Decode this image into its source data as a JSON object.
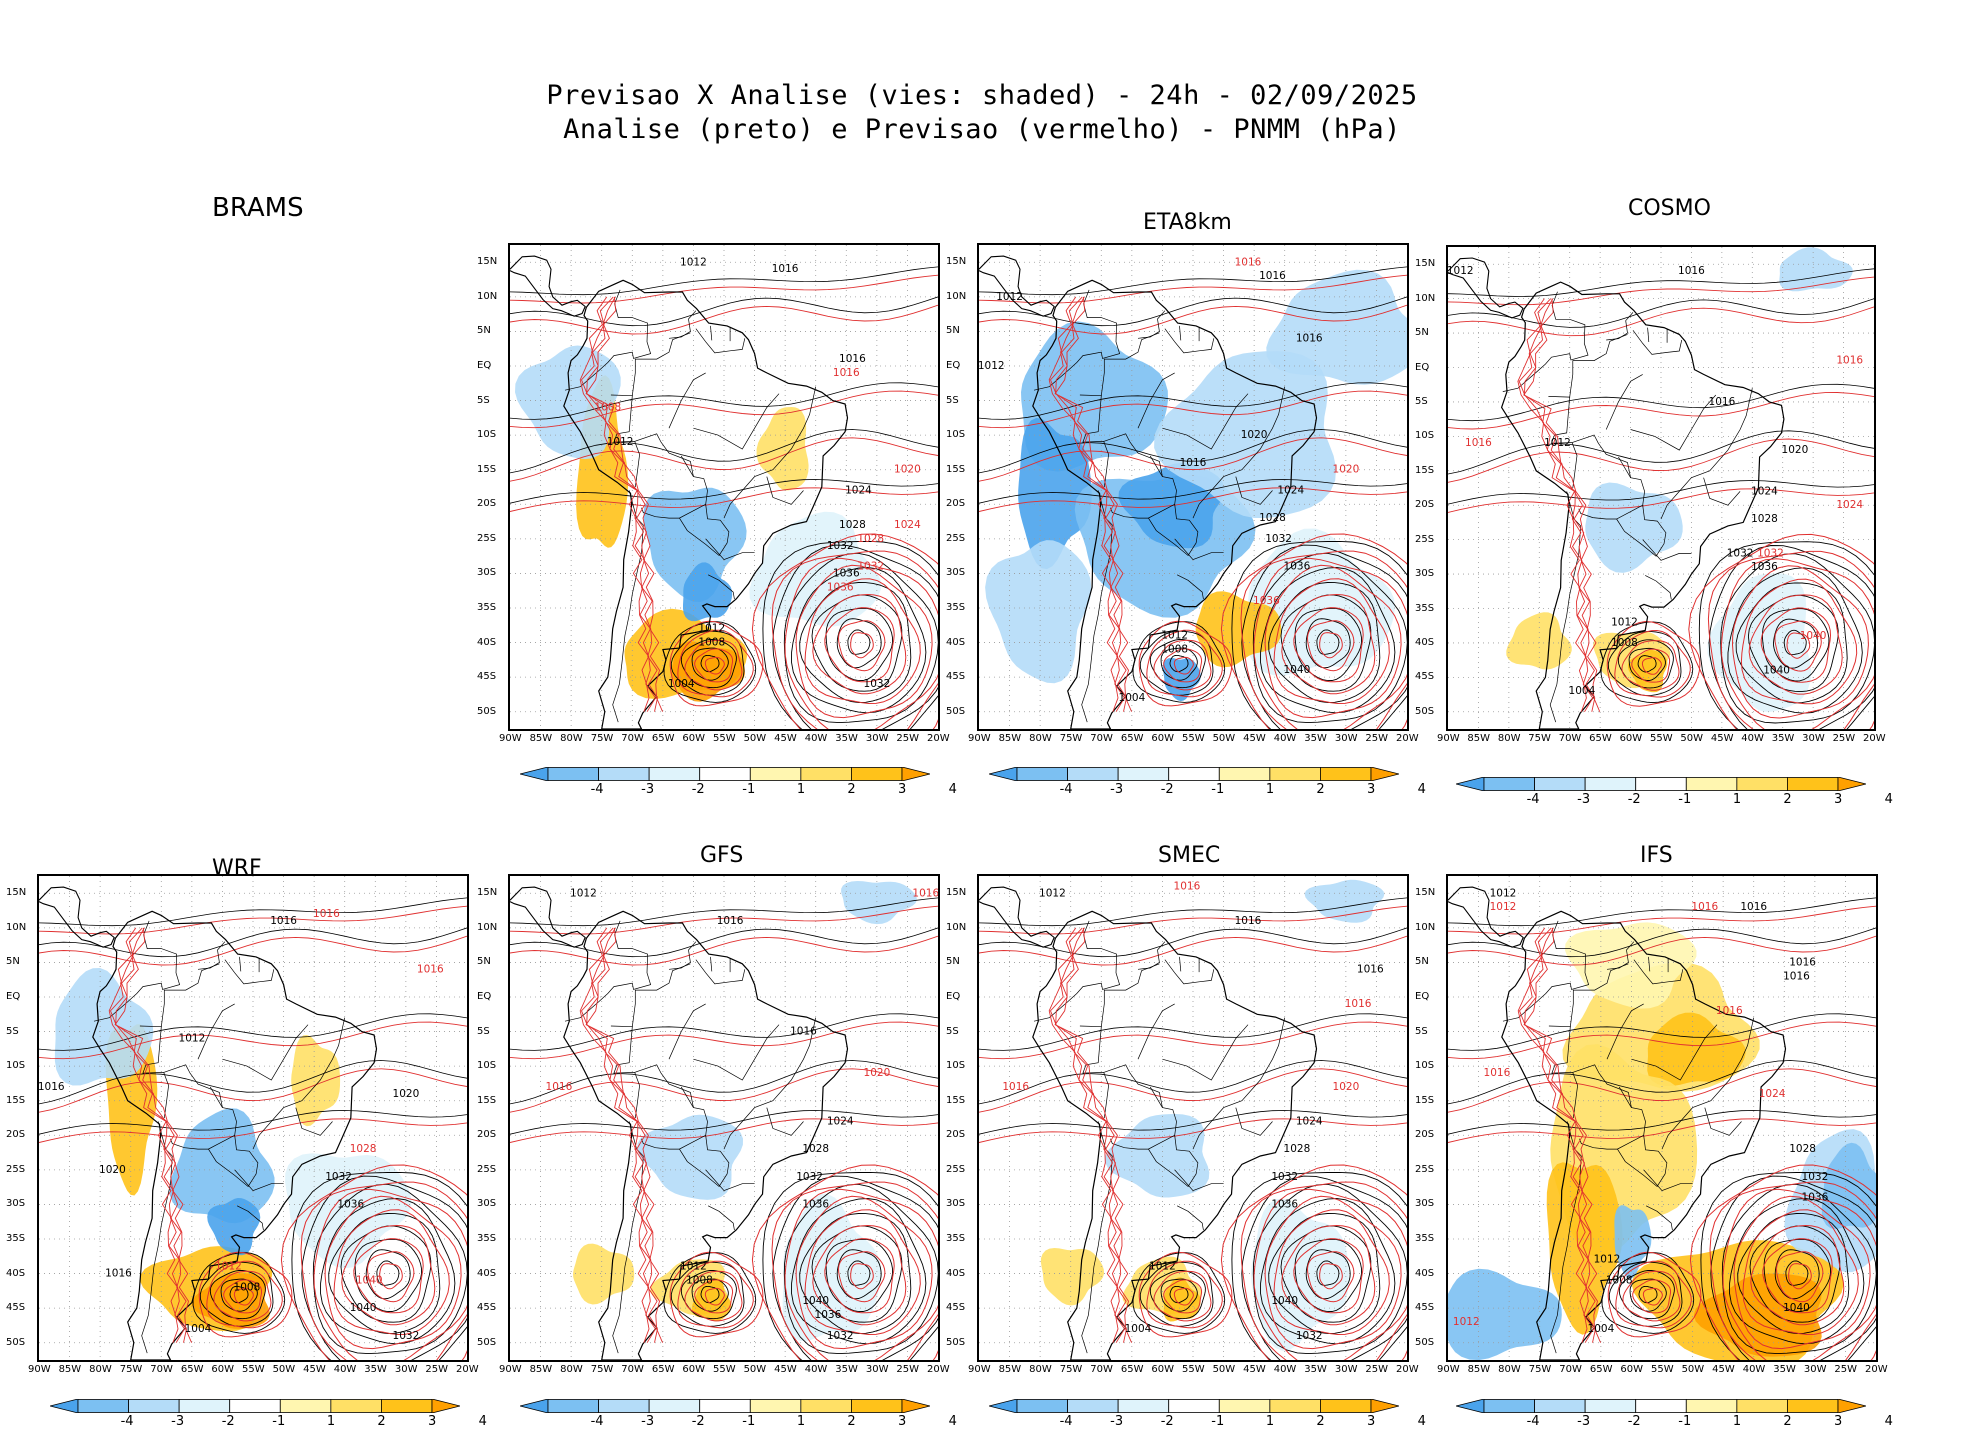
{
  "header": {
    "line1": "Previsao X Analise (vies: shaded) - 24h - 02/09/2025",
    "line2": "Analise (preto) e Previsao (vermelho) - PNMM (hPa)"
  },
  "lat_labels": [
    "15N",
    "10N",
    "5N",
    "EQ",
    "5S",
    "10S",
    "15S",
    "20S",
    "25S",
    "30S",
    "35S",
    "40S",
    "45S",
    "50S"
  ],
  "lon_labels": [
    "90W",
    "85W",
    "80W",
    "75W",
    "70W",
    "65W",
    "60W",
    "55W",
    "50W",
    "45W",
    "40W",
    "35W",
    "30W",
    "25W",
    "20W"
  ],
  "colorbar": {
    "ticks": [
      "-4",
      "-3",
      "-2",
      "-1",
      "1",
      "2",
      "3",
      "4"
    ],
    "colors": [
      "#4aa3ec",
      "#7cc0f2",
      "#b4dcf8",
      "#dff3fb",
      "#ffffff",
      "#fff6b0",
      "#ffe066",
      "#ffc21a",
      "#ffa000"
    ]
  },
  "line_colors": {
    "analysis": "#000000",
    "forecast": "#e03030"
  },
  "panels": [
    {
      "model": "BRAMS",
      "bias": "mixed",
      "isobars": [
        {
          "value": "1012",
          "v": 1012,
          "lon": -60,
          "lat": 15,
          "fc": false
        },
        {
          "value": "1016",
          "v": 1016,
          "lon": -45,
          "lat": 14,
          "fc": false
        },
        {
          "value": "1016",
          "v": 1016,
          "lon": -34,
          "lat": 1,
          "fc": false
        },
        {
          "value": "1016",
          "v": 1016,
          "lon": -35,
          "lat": -1,
          "fc": true
        },
        {
          "value": "1012",
          "v": 1012,
          "lon": -72,
          "lat": -11,
          "fc": false
        },
        {
          "value": "1008",
          "v": 1008,
          "lon": -74,
          "lat": -6,
          "fc": true
        },
        {
          "value": "1020",
          "v": 1020,
          "lon": -25,
          "lat": -15,
          "fc": true
        },
        {
          "value": "1024",
          "v": 1024,
          "lon": -33,
          "lat": -18,
          "fc": false
        },
        {
          "value": "1024",
          "v": 1024,
          "lon": -25,
          "lat": -23,
          "fc": true
        },
        {
          "value": "1028",
          "v": 1028,
          "lon": -34,
          "lat": -23,
          "fc": false
        },
        {
          "value": "1028",
          "v": 1028,
          "lon": -31,
          "lat": -25,
          "fc": true
        },
        {
          "value": "1032",
          "v": 1032,
          "lon": -36,
          "lat": -26,
          "fc": false
        },
        {
          "value": "1032",
          "v": 1032,
          "lon": -31,
          "lat": -29,
          "fc": true
        },
        {
          "value": "1036",
          "v": 1036,
          "lon": -35,
          "lat": -30,
          "fc": false
        },
        {
          "value": "1036",
          "v": 1036,
          "lon": -36,
          "lat": -32,
          "fc": true
        },
        {
          "value": "1012",
          "v": 1012,
          "lon": -57,
          "lat": -38,
          "fc": false
        },
        {
          "value": "1008",
          "v": 1008,
          "lon": -57,
          "lat": -40,
          "fc": false
        },
        {
          "value": "1004",
          "v": 1004,
          "lon": -62,
          "lat": -46,
          "fc": false
        },
        {
          "value": "1032",
          "v": 1032,
          "lon": -30,
          "lat": -46,
          "fc": false
        }
      ]
    },
    {
      "model": "ETA8km",
      "bias": "negative",
      "isobars": [
        {
          "value": "1012",
          "v": 1012,
          "lon": -85,
          "lat": 10,
          "fc": false
        },
        {
          "value": "1016",
          "v": 1016,
          "lon": -42,
          "lat": 13,
          "fc": false
        },
        {
          "value": "1016",
          "v": 1016,
          "lon": -46,
          "lat": 15,
          "fc": true
        },
        {
          "value": "1016",
          "v": 1016,
          "lon": -36,
          "lat": 4,
          "fc": false
        },
        {
          "value": "1012",
          "v": 1012,
          "lon": -88,
          "lat": 0,
          "fc": false
        },
        {
          "value": "1016",
          "v": 1016,
          "lon": -55,
          "lat": -14,
          "fc": false
        },
        {
          "value": "1020",
          "v": 1020,
          "lon": -45,
          "lat": -10,
          "fc": false
        },
        {
          "value": "1020",
          "v": 1020,
          "lon": -30,
          "lat": -15,
          "fc": true
        },
        {
          "value": "1024",
          "v": 1024,
          "lon": -39,
          "lat": -18,
          "fc": false
        },
        {
          "value": "1028",
          "v": 1028,
          "lon": -42,
          "lat": -22,
          "fc": false
        },
        {
          "value": "1032",
          "v": 1032,
          "lon": -41,
          "lat": -25,
          "fc": false
        },
        {
          "value": "1036",
          "v": 1036,
          "lon": -38,
          "lat": -29,
          "fc": false
        },
        {
          "value": "1036",
          "v": 1036,
          "lon": -43,
          "lat": -34,
          "fc": true
        },
        {
          "value": "1040",
          "v": 1040,
          "lon": -38,
          "lat": -44,
          "fc": false
        },
        {
          "value": "1012",
          "v": 1012,
          "lon": -58,
          "lat": -39,
          "fc": false
        },
        {
          "value": "1008",
          "v": 1008,
          "lon": -58,
          "lat": -41,
          "fc": false
        },
        {
          "value": "1004",
          "v": 1004,
          "lon": -65,
          "lat": -48,
          "fc": false
        }
      ]
    },
    {
      "model": "COSMO",
      "bias": "weak",
      "isobars": [
        {
          "value": "1012",
          "v": 1012,
          "lon": -88,
          "lat": 14,
          "fc": false
        },
        {
          "value": "1016",
          "v": 1016,
          "lon": -50,
          "lat": 14,
          "fc": false
        },
        {
          "value": "1016",
          "v": 1016,
          "lon": -24,
          "lat": 1,
          "fc": true
        },
        {
          "value": "1016",
          "v": 1016,
          "lon": -45,
          "lat": -5,
          "fc": false
        },
        {
          "value": "1012",
          "v": 1012,
          "lon": -72,
          "lat": -11,
          "fc": false
        },
        {
          "value": "1016",
          "v": 1016,
          "lon": -85,
          "lat": -11,
          "fc": true
        },
        {
          "value": "1020",
          "v": 1020,
          "lon": -33,
          "lat": -12,
          "fc": false
        },
        {
          "value": "1024",
          "v": 1024,
          "lon": -38,
          "lat": -18,
          "fc": false
        },
        {
          "value": "1024",
          "v": 1024,
          "lon": -24,
          "lat": -20,
          "fc": true
        },
        {
          "value": "1028",
          "v": 1028,
          "lon": -38,
          "lat": -22,
          "fc": false
        },
        {
          "value": "1032",
          "v": 1032,
          "lon": -42,
          "lat": -27,
          "fc": false
        },
        {
          "value": "1032",
          "v": 1032,
          "lon": -37,
          "lat": -27,
          "fc": true
        },
        {
          "value": "1036",
          "v": 1036,
          "lon": -38,
          "lat": -29,
          "fc": false
        },
        {
          "value": "1040",
          "v": 1040,
          "lon": -30,
          "lat": -39,
          "fc": true
        },
        {
          "value": "1040",
          "v": 1040,
          "lon": -36,
          "lat": -44,
          "fc": false
        },
        {
          "value": "1012",
          "v": 1012,
          "lon": -61,
          "lat": -37,
          "fc": false
        },
        {
          "value": "1008",
          "v": 1008,
          "lon": -61,
          "lat": -40,
          "fc": false
        },
        {
          "value": "1004",
          "v": 1004,
          "lon": -68,
          "lat": -47,
          "fc": false
        }
      ]
    },
    {
      "model": "WRF",
      "bias": "mixed",
      "isobars": [
        {
          "value": "1016",
          "v": 1016,
          "lon": -50,
          "lat": 11,
          "fc": false
        },
        {
          "value": "1016",
          "v": 1016,
          "lon": -43,
          "lat": 12,
          "fc": true
        },
        {
          "value": "1016",
          "v": 1016,
          "lon": -26,
          "lat": 4,
          "fc": true
        },
        {
          "value": "1012",
          "v": 1012,
          "lon": -65,
          "lat": -6,
          "fc": false
        },
        {
          "value": "1016",
          "v": 1016,
          "lon": -88,
          "lat": -13,
          "fc": false
        },
        {
          "value": "1020",
          "v": 1020,
          "lon": -30,
          "lat": -14,
          "fc": false
        },
        {
          "value": "1028",
          "v": 1028,
          "lon": -37,
          "lat": -22,
          "fc": true
        },
        {
          "value": "1032",
          "v": 1032,
          "lon": -41,
          "lat": -26,
          "fc": false
        },
        {
          "value": "1036",
          "v": 1036,
          "lon": -39,
          "lat": -30,
          "fc": false
        },
        {
          "value": "1040",
          "v": 1040,
          "lon": -36,
          "lat": -41,
          "fc": true
        },
        {
          "value": "1040",
          "v": 1040,
          "lon": -37,
          "lat": -45,
          "fc": false
        },
        {
          "value": "1032",
          "v": 1032,
          "lon": -30,
          "lat": -49,
          "fc": false
        },
        {
          "value": "1020",
          "v": 1020,
          "lon": -78,
          "lat": -25,
          "fc": false
        },
        {
          "value": "1016",
          "v": 1016,
          "lon": -77,
          "lat": -40,
          "fc": false
        },
        {
          "value": "1012",
          "v": 1012,
          "lon": -59,
          "lat": -39,
          "fc": true
        },
        {
          "value": "1008",
          "v": 1008,
          "lon": -56,
          "lat": -42,
          "fc": false
        },
        {
          "value": "1004",
          "v": 1004,
          "lon": -64,
          "lat": -48,
          "fc": false
        }
      ]
    },
    {
      "model": "GFS",
      "bias": "weak",
      "isobars": [
        {
          "value": "1012",
          "v": 1012,
          "lon": -78,
          "lat": 15,
          "fc": false
        },
        {
          "value": "1016",
          "v": 1016,
          "lon": -54,
          "lat": 11,
          "fc": false
        },
        {
          "value": "1016",
          "v": 1016,
          "lon": -22,
          "lat": 15,
          "fc": true
        },
        {
          "value": "1016",
          "v": 1016,
          "lon": -42,
          "lat": -5,
          "fc": false
        },
        {
          "value": "1016",
          "v": 1016,
          "lon": -82,
          "lat": -13,
          "fc": true
        },
        {
          "value": "1020",
          "v": 1020,
          "lon": -30,
          "lat": -11,
          "fc": true
        },
        {
          "value": "1024",
          "v": 1024,
          "lon": -36,
          "lat": -18,
          "fc": false
        },
        {
          "value": "1028",
          "v": 1028,
          "lon": -40,
          "lat": -22,
          "fc": false
        },
        {
          "value": "1032",
          "v": 1032,
          "lon": -41,
          "lat": -26,
          "fc": false
        },
        {
          "value": "1036",
          "v": 1036,
          "lon": -40,
          "lat": -30,
          "fc": false
        },
        {
          "value": "1040",
          "v": 1040,
          "lon": -40,
          "lat": -44,
          "fc": false
        },
        {
          "value": "1036",
          "v": 1036,
          "lon": -38,
          "lat": -46,
          "fc": false
        },
        {
          "value": "1032",
          "v": 1032,
          "lon": -36,
          "lat": -49,
          "fc": false
        },
        {
          "value": "1012",
          "v": 1012,
          "lon": -60,
          "lat": -39,
          "fc": false
        },
        {
          "value": "1008",
          "v": 1008,
          "lon": -59,
          "lat": -41,
          "fc": false
        }
      ]
    },
    {
      "model": "SMEC",
      "bias": "weak",
      "isobars": [
        {
          "value": "1012",
          "v": 1012,
          "lon": -78,
          "lat": 15,
          "fc": false
        },
        {
          "value": "1016",
          "v": 1016,
          "lon": -56,
          "lat": 16,
          "fc": true
        },
        {
          "value": "1016",
          "v": 1016,
          "lon": -46,
          "lat": 11,
          "fc": false
        },
        {
          "value": "1016",
          "v": 1016,
          "lon": -26,
          "lat": 4,
          "fc": false
        },
        {
          "value": "1016",
          "v": 1016,
          "lon": -28,
          "lat": -1,
          "fc": true
        },
        {
          "value": "1016",
          "v": 1016,
          "lon": -84,
          "lat": -13,
          "fc": true
        },
        {
          "value": "1020",
          "v": 1020,
          "lon": -30,
          "lat": -13,
          "fc": true
        },
        {
          "value": "1024",
          "v": 1024,
          "lon": -36,
          "lat": -18,
          "fc": false
        },
        {
          "value": "1028",
          "v": 1028,
          "lon": -38,
          "lat": -22,
          "fc": false
        },
        {
          "value": "1032",
          "v": 1032,
          "lon": -40,
          "lat": -26,
          "fc": false
        },
        {
          "value": "1036",
          "v": 1036,
          "lon": -40,
          "lat": -30,
          "fc": false
        },
        {
          "value": "1040",
          "v": 1040,
          "lon": -40,
          "lat": -44,
          "fc": false
        },
        {
          "value": "1032",
          "v": 1032,
          "lon": -36,
          "lat": -49,
          "fc": false
        },
        {
          "value": "1012",
          "v": 1012,
          "lon": -60,
          "lat": -39,
          "fc": false
        },
        {
          "value": "1004",
          "v": 1004,
          "lon": -64,
          "lat": -48,
          "fc": false
        }
      ]
    },
    {
      "model": "IFS",
      "bias": "positive",
      "isobars": [
        {
          "value": "1012",
          "v": 1012,
          "lon": -81,
          "lat": 15,
          "fc": false
        },
        {
          "value": "1012",
          "v": 1012,
          "lon": -81,
          "lat": 13,
          "fc": true
        },
        {
          "value": "1016",
          "v": 1016,
          "lon": -48,
          "lat": 13,
          "fc": true
        },
        {
          "value": "1016",
          "v": 1016,
          "lon": -40,
          "lat": 13,
          "fc": false
        },
        {
          "value": "1016",
          "v": 1016,
          "lon": -32,
          "lat": 5,
          "fc": false
        },
        {
          "value": "1016",
          "v": 1016,
          "lon": -33,
          "lat": 3,
          "fc": false
        },
        {
          "value": "1016",
          "v": 1016,
          "lon": -44,
          "lat": -2,
          "fc": true
        },
        {
          "value": "1016",
          "v": 1016,
          "lon": -82,
          "lat": -11,
          "fc": true
        },
        {
          "value": "1024",
          "v": 1024,
          "lon": -37,
          "lat": -14,
          "fc": true
        },
        {
          "value": "1028",
          "v": 1028,
          "lon": -32,
          "lat": -22,
          "fc": false
        },
        {
          "value": "1032",
          "v": 1032,
          "lon": -30,
          "lat": -26,
          "fc": false
        },
        {
          "value": "1036",
          "v": 1036,
          "lon": -30,
          "lat": -29,
          "fc": false
        },
        {
          "value": "1040",
          "v": 1040,
          "lon": -33,
          "lat": -45,
          "fc": false
        },
        {
          "value": "1012",
          "v": 1012,
          "lon": -64,
          "lat": -38,
          "fc": false
        },
        {
          "value": "1008",
          "v": 1008,
          "lon": -62,
          "lat": -41,
          "fc": false
        },
        {
          "value": "1004",
          "v": 1004,
          "lon": -65,
          "lat": -48,
          "fc": false
        },
        {
          "value": "1012",
          "v": 1012,
          "lon": -87,
          "lat": -47,
          "fc": true
        }
      ]
    }
  ]
}
